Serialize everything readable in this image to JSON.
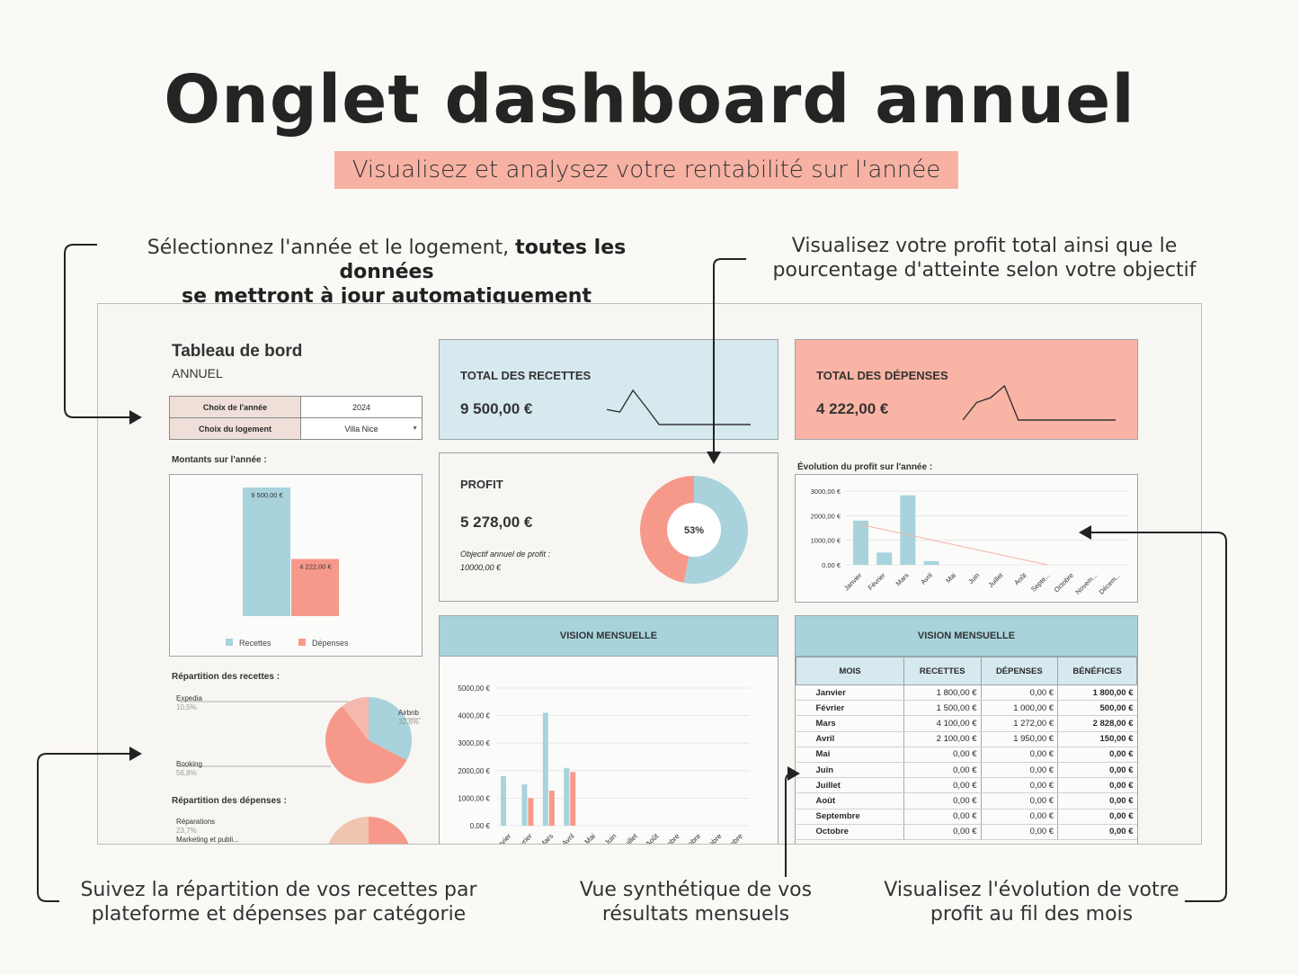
{
  "page": {
    "title": "Onglet dashboard annuel",
    "subtitle": "Visualisez et analysez votre rentabilité sur l'année"
  },
  "captions": {
    "top_left_normal": "Sélectionnez l'année et le logement,",
    "top_left_bold1": "toutes les données",
    "top_left_bold2": "se mettront à jour automatiquement",
    "top_right_1": "Visualisez votre profit total ainsi que le",
    "top_right_2": "pourcentage d'atteinte selon votre objectif",
    "bottom_left_1": "Suivez la répartition de vos recettes par",
    "bottom_left_2": "plateforme et dépenses par catégorie",
    "bottom_mid_1": "Vue synthétique de vos",
    "bottom_mid_2": "résultats mensuels",
    "bottom_right_1": "Visualisez l'évolution de votre",
    "bottom_right_2": "profit au fil des mois"
  },
  "dashboard": {
    "title": "Tableau de bord",
    "subtitle": "ANNUEL",
    "selector": {
      "year_label": "Choix de l'année",
      "year_value": "2024",
      "lodging_label": "Choix du logement",
      "lodging_value": "Villa Nice"
    },
    "amounts_label": "Montants sur l'année :",
    "revenue_split_label": "Répartition des recettes :",
    "expense_split_label": "Répartition des dépenses :",
    "total_revenue": {
      "label": "TOTAL DES RECETTES",
      "value": "9 500,00 €"
    },
    "total_expenses": {
      "label": "TOTAL DES DÉPENSES",
      "value": "4 222,00 €"
    },
    "profit": {
      "label": "PROFIT",
      "value": "5 278,00 €",
      "objective_label": "Objectif annuel de profit :",
      "objective_value": "10000,00 €",
      "percent_label": "53%",
      "percent": 53
    },
    "profit_evolution_label": "Évolution du profit sur l'année :",
    "vision_label": "VISION MENSUELLE",
    "table": {
      "headers": [
        "MOIS",
        "RECETTES",
        "DÉPENSES",
        "BÉNÉFICES"
      ],
      "rows": [
        [
          "Janvier",
          "1 800,00 €",
          "0,00 €",
          "1 800,00 €"
        ],
        [
          "Février",
          "1 500,00 €",
          "1 000,00 €",
          "500,00 €"
        ],
        [
          "Mars",
          "4 100,00 €",
          "1 272,00 €",
          "2 828,00 €"
        ],
        [
          "Avril",
          "2 100,00 €",
          "1 950,00 €",
          "150,00 €"
        ],
        [
          "Mai",
          "0,00 €",
          "0,00 €",
          "0,00 €"
        ],
        [
          "Juin",
          "0,00 €",
          "0,00 €",
          "0,00 €"
        ],
        [
          "Juillet",
          "0,00 €",
          "0,00 €",
          "0,00 €"
        ],
        [
          "Août",
          "0,00 €",
          "0,00 €",
          "0,00 €"
        ],
        [
          "Septembre",
          "0,00 €",
          "0,00 €",
          "0,00 €"
        ],
        [
          "Octobre",
          "0,00 €",
          "0,00 €",
          "0,00 €"
        ]
      ]
    }
  },
  "colors": {
    "blue": "#a8d3dc",
    "pink": "#f7998a",
    "blue_light": "#d6e9ee",
    "pink_light": "#f9b4a5",
    "peach": "#efc5b0"
  },
  "chart_data": [
    {
      "type": "bar",
      "id": "amounts",
      "categories": [
        "Recettes",
        "Dépenses"
      ],
      "values": [
        9500,
        4222
      ],
      "data_labels": [
        "9 500,00 €",
        "4 222,00 €"
      ],
      "legend": [
        "Recettes",
        "Dépenses"
      ]
    },
    {
      "type": "pie",
      "id": "revenue_split",
      "labels": [
        "Airbnb",
        "Booking",
        "Expedia"
      ],
      "values": [
        32.6,
        56.8,
        10.5
      ],
      "value_labels": [
        "32,6%",
        "56,8%",
        "10,5%"
      ]
    },
    {
      "type": "pie",
      "id": "expense_split",
      "labels": [
        "Réparations",
        "Marketing et publi..."
      ],
      "value_labels": [
        "23,7%"
      ]
    },
    {
      "type": "pie",
      "id": "profit_donut",
      "values": [
        53,
        47
      ]
    },
    {
      "type": "bar",
      "id": "profit_evolution",
      "categories": [
        "Janvier",
        "Février",
        "Mars",
        "Avril",
        "Mai",
        "Juin",
        "Juillet",
        "Août",
        "Septe...",
        "Octobre",
        "Novem...",
        "Décem..."
      ],
      "values": [
        1800,
        500,
        2828,
        150,
        0,
        0,
        0,
        0,
        0,
        0,
        0,
        0
      ],
      "yticks": [
        "3000,00 €",
        "2000,00 €",
        "1000,00 €",
        "0,00 €"
      ],
      "ylim": [
        0,
        3000
      ]
    },
    {
      "type": "bar",
      "id": "monthly_vision",
      "categories": [
        "Janvier",
        "Février",
        "Mars",
        "Avril",
        "Mai",
        "Juin",
        "Juillet",
        "Août",
        "Septembre",
        "Octobre",
        "Novembre",
        "Décembre"
      ],
      "tick_labels": [
        "nvier",
        "vrier",
        "Mars",
        "Avril",
        "Mai",
        "Juin",
        "Juillet",
        "Août",
        "mbre",
        "obre",
        "mbre",
        "mbre"
      ],
      "series": [
        {
          "name": "Recettes",
          "values": [
            1800,
            1500,
            4100,
            2100,
            0,
            0,
            0,
            0,
            0,
            0,
            0,
            0
          ]
        },
        {
          "name": "Dépenses",
          "values": [
            0,
            1000,
            1272,
            1950,
            0,
            0,
            0,
            0,
            0,
            0,
            0,
            0
          ]
        }
      ],
      "yticks": [
        "5000,00 €",
        "4000,00 €",
        "3000,00 €",
        "2000,00 €",
        "1000,00 €",
        "0,00 €"
      ],
      "ylim": [
        0,
        5000
      ]
    },
    {
      "type": "line",
      "id": "revenue_sparkline",
      "values": [
        1800,
        1500,
        4100,
        2100,
        0,
        0,
        0,
        0,
        0,
        0,
        0,
        0
      ]
    },
    {
      "type": "line",
      "id": "expense_sparkline",
      "values": [
        0,
        1000,
        1272,
        1950,
        0,
        0,
        0,
        0,
        0,
        0,
        0,
        0
      ]
    }
  ]
}
